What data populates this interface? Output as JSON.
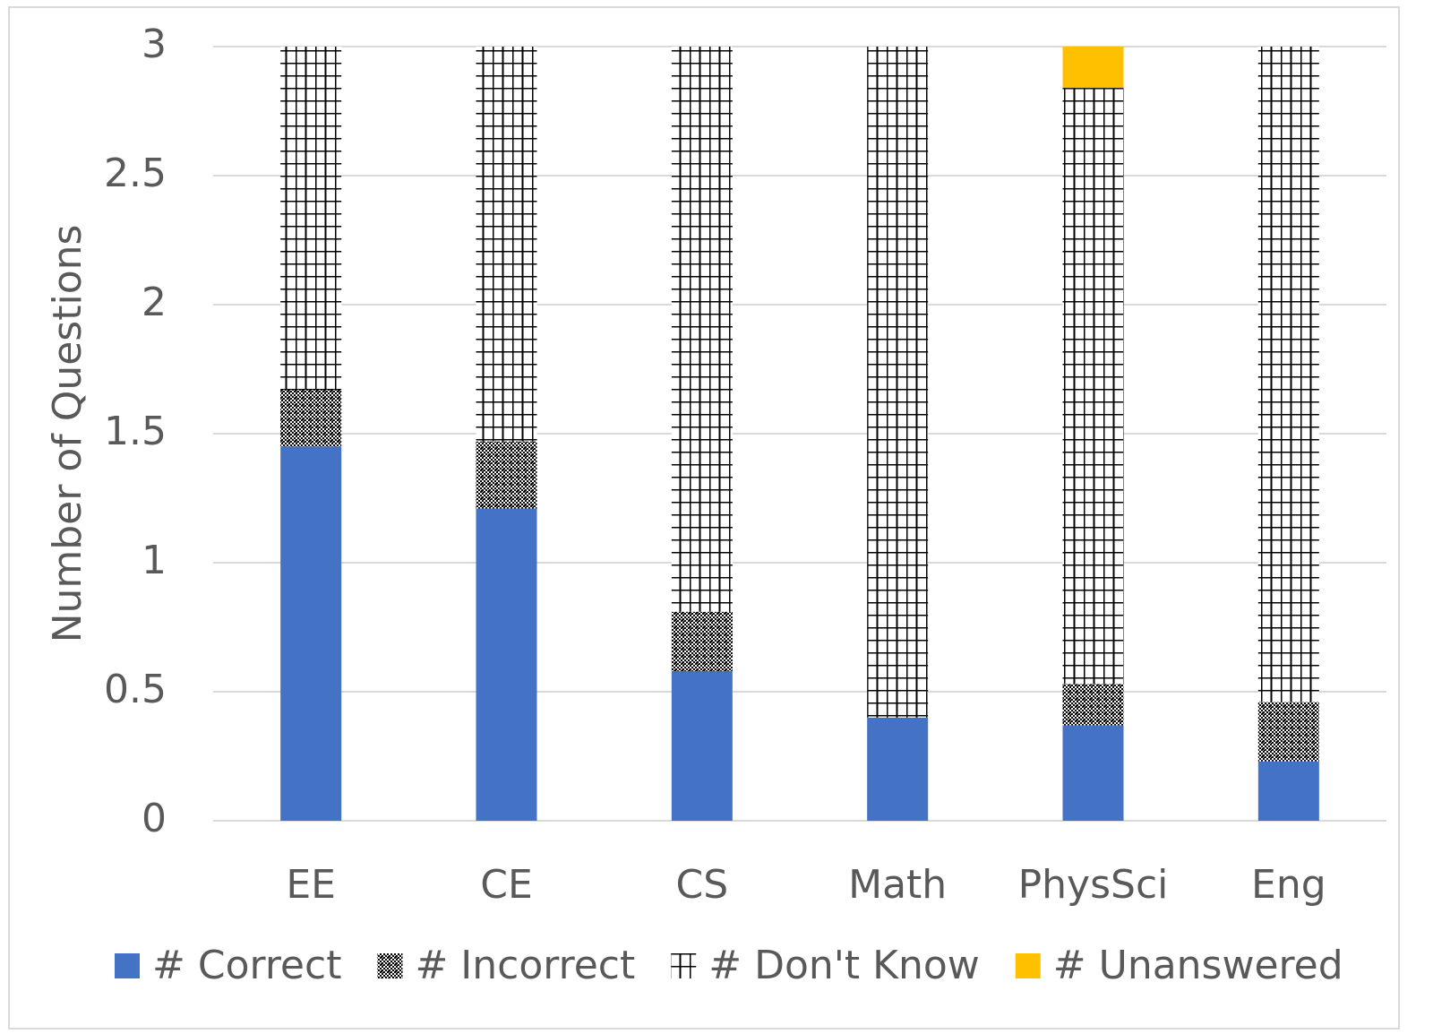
{
  "chart_data": {
    "type": "stacked_bar",
    "y_label": "Number of Questions",
    "categories": [
      "EE",
      "CE",
      "CS",
      "Math",
      "PhysSci",
      "Eng"
    ],
    "series": [
      {
        "name": "# Correct",
        "color": "#4472c4",
        "pattern": "solid",
        "values": [
          1.45,
          1.21,
          0.58,
          0.4,
          0.37,
          0.23
        ]
      },
      {
        "name": "# Incorrect",
        "color": "#000000",
        "pattern": "weave",
        "values": [
          0.22,
          0.26,
          0.23,
          0,
          0.16,
          0.23
        ]
      },
      {
        "name": "# Don't Know",
        "color": "#000000",
        "pattern": "grid",
        "values": [
          1.33,
          1.53,
          2.19,
          2.6,
          2.31,
          2.54
        ]
      },
      {
        "name": "# Unanswered",
        "color": "#ffc000",
        "pattern": "solid",
        "values": [
          0,
          0,
          0,
          0,
          0.16,
          0
        ]
      }
    ],
    "ylim": [
      0,
      3
    ],
    "yticks": [
      0,
      0.5,
      1,
      1.5,
      2,
      2.5,
      3
    ],
    "grid": true,
    "legend": "bottom"
  }
}
